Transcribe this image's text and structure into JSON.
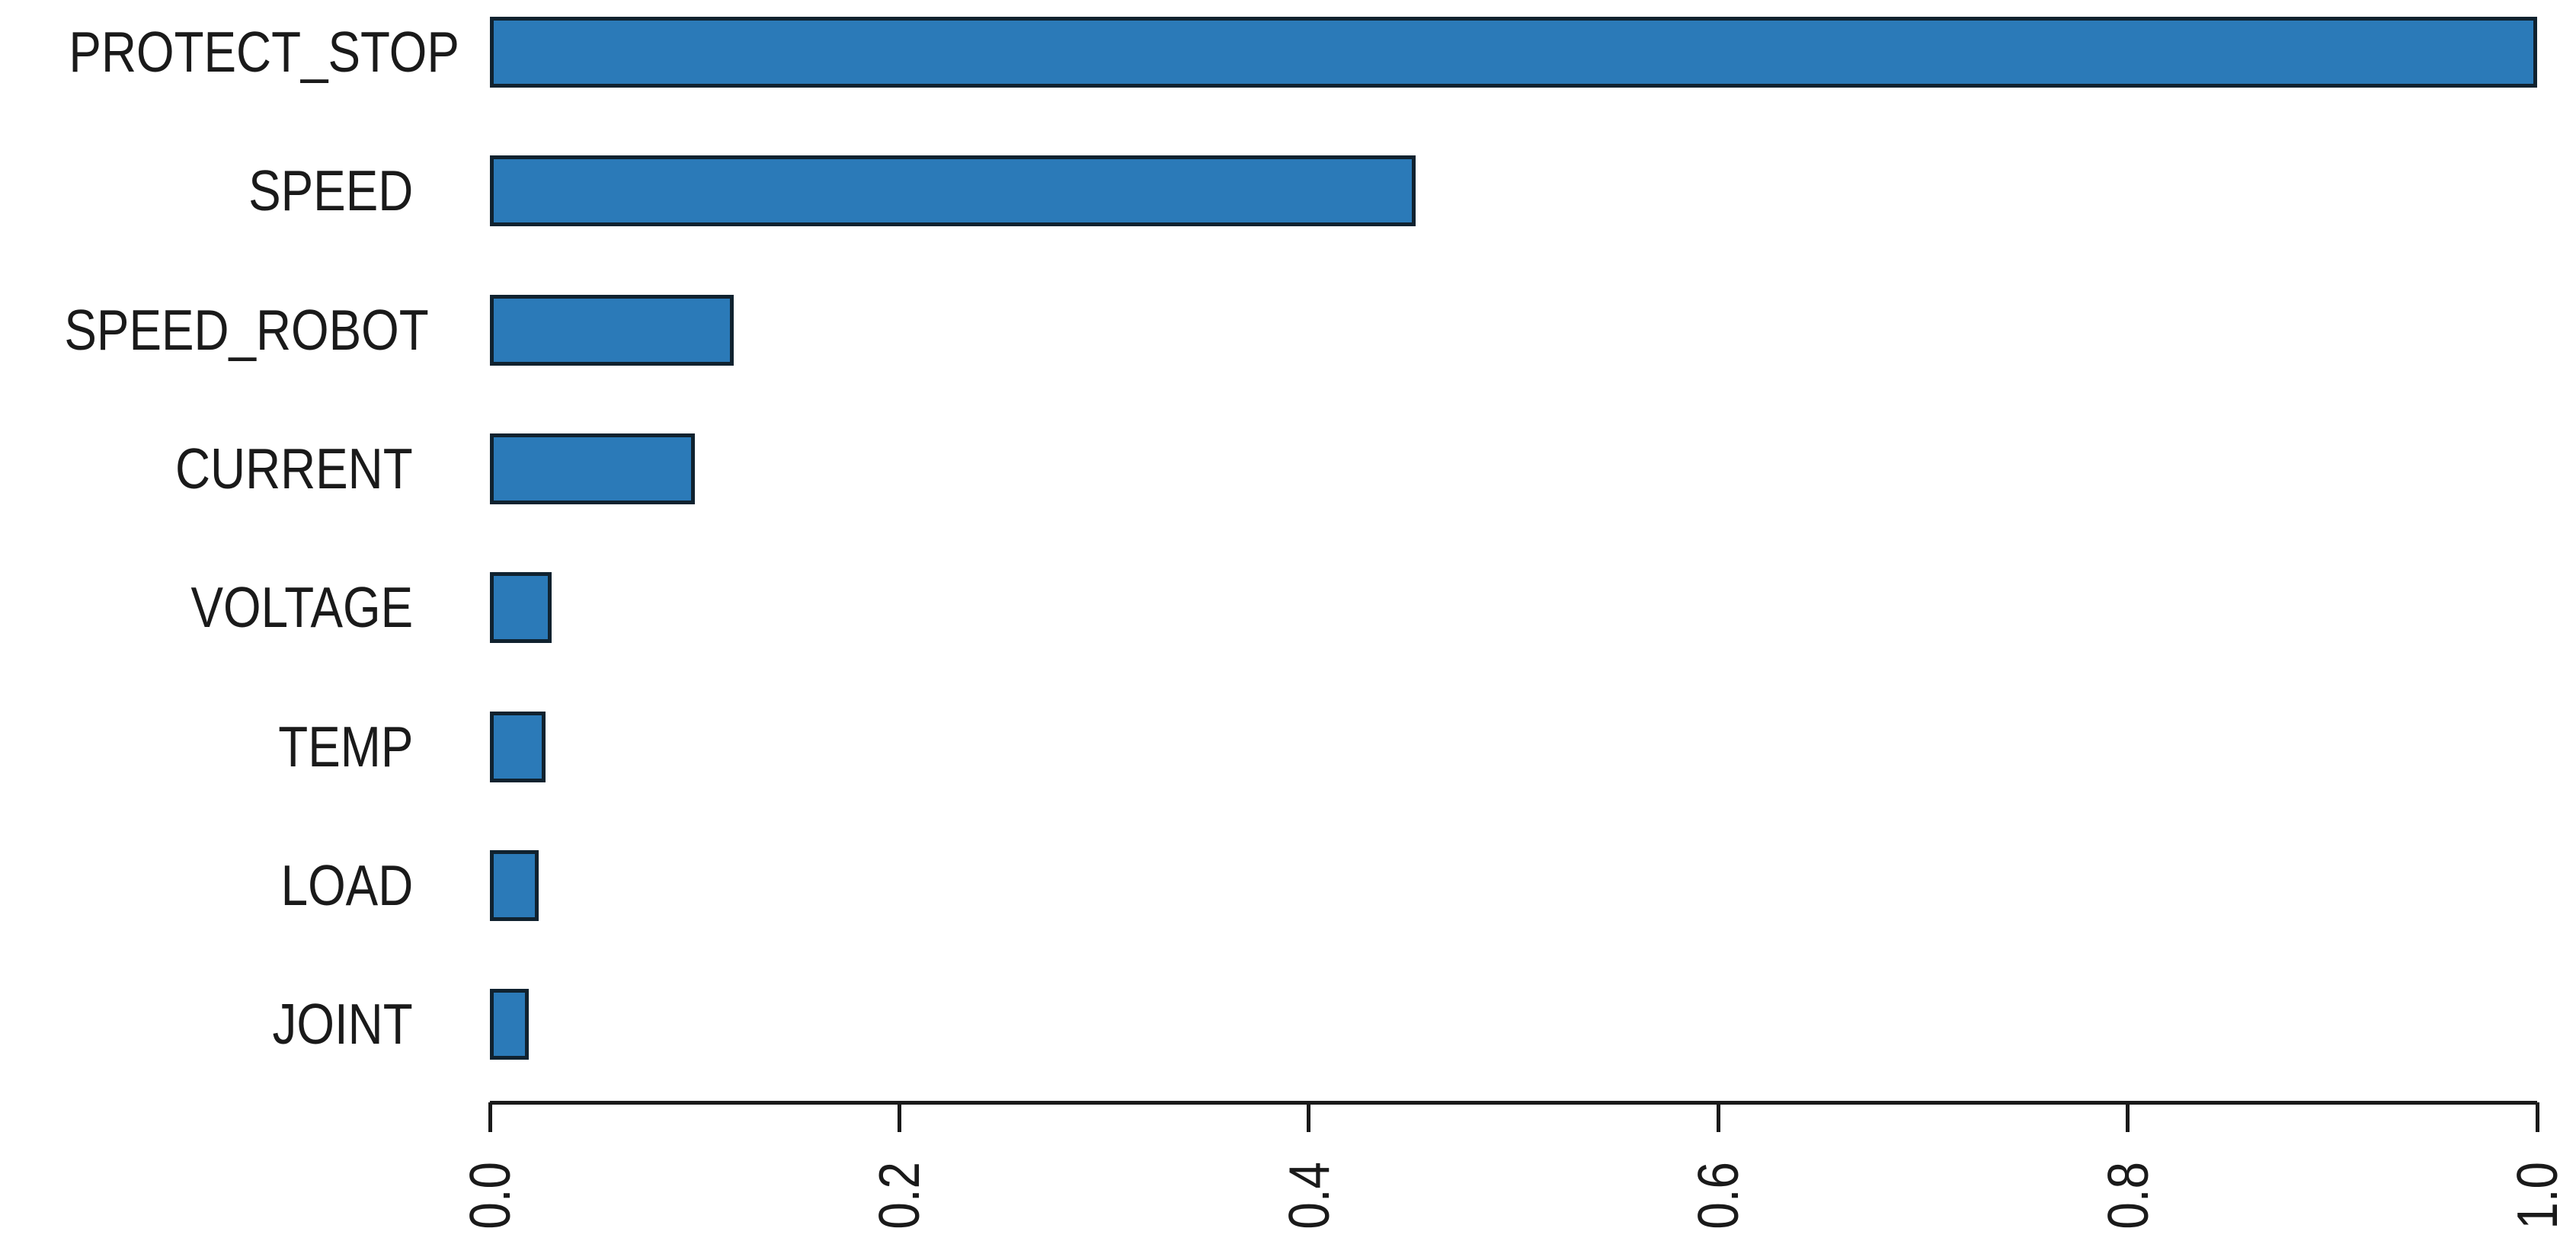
{
  "chart_data": {
    "type": "bar",
    "orientation": "horizontal",
    "title": "",
    "xlabel": "",
    "ylabel": "",
    "categories": [
      "PROTECT_STOP",
      "SPEED",
      "SPEED_ROBOT",
      "CURRENT",
      "VOLTAGE",
      "TEMP",
      "LOAD",
      "JOINT"
    ],
    "values": [
      1.0,
      0.452,
      0.119,
      0.1,
      0.03,
      0.027,
      0.024,
      0.019
    ],
    "xlim": [
      0.0,
      1.0
    ],
    "x_tick_labels": [
      "0.0",
      "0.2",
      "0.4",
      "0.6",
      "0.8",
      "1.0"
    ],
    "x_tick_values": [
      0.0,
      0.2,
      0.4,
      0.6,
      0.8,
      1.0
    ],
    "x_tick_label_rotation_deg": 90,
    "grid": false,
    "legend": null,
    "colors": {
      "bar_fill": "#2b7ab8",
      "bar_edge": "#10222f",
      "axis": "#1a1a1a",
      "text": "#1a1a1a",
      "background": "#ffffff"
    }
  }
}
